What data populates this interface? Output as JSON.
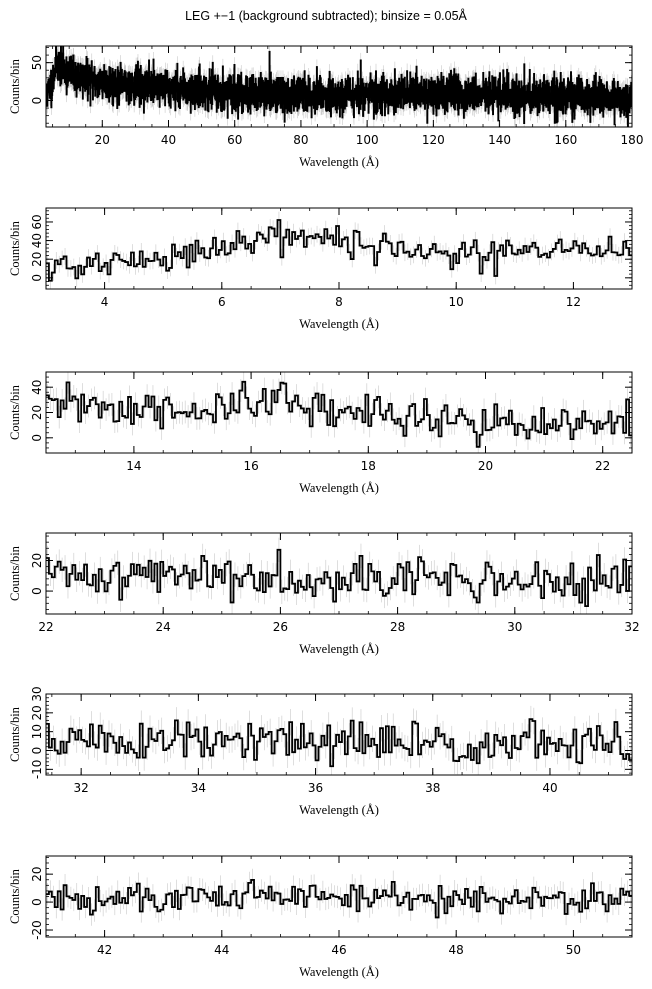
{
  "title": "LEG +−1 (background subtracted); binsize = 0.05Å",
  "colors": {
    "line": "#000000",
    "errorbar": "#c8c8c8",
    "frame": "#000000",
    "background": "#ffffff"
  },
  "chart_data": [
    {
      "type": "line",
      "step": true,
      "xlabel": "Wavelength (Å)",
      "ylabel": "Counts/bin",
      "xlim": [
        3,
        180
      ],
      "ylim": [
        -35,
        72
      ],
      "xticks": [
        20,
        40,
        60,
        80,
        100,
        120,
        140,
        160,
        180
      ],
      "yticks": [
        0,
        50
      ],
      "binsize": 0.05,
      "profile": [
        [
          3,
          5
        ],
        [
          5,
          25
        ],
        [
          6,
          50
        ],
        [
          7,
          45
        ],
        [
          10,
          35
        ],
        [
          15,
          28
        ],
        [
          25,
          22
        ],
        [
          40,
          18
        ],
        [
          60,
          10
        ],
        [
          80,
          8
        ],
        [
          100,
          8
        ],
        [
          120,
          9
        ],
        [
          140,
          8
        ],
        [
          160,
          6
        ],
        [
          170,
          3
        ],
        [
          175,
          1
        ],
        [
          180,
          0
        ]
      ],
      "scatter_sd": 12,
      "error_bar": 10,
      "noise_seed": 11
    },
    {
      "type": "line",
      "step": true,
      "xlabel": "Wavelength (Å)",
      "ylabel": "Counts/bin",
      "xlim": [
        3,
        13
      ],
      "ylim": [
        -12,
        75
      ],
      "xticks": [
        4,
        6,
        8,
        10,
        12
      ],
      "yticks": [
        0,
        20,
        40,
        60
      ],
      "binsize": 0.05,
      "profile": [
        [
          3,
          10
        ],
        [
          4,
          15
        ],
        [
          5,
          20
        ],
        [
          5.5,
          25
        ],
        [
          6,
          32
        ],
        [
          6.5,
          47
        ],
        [
          7,
          47
        ],
        [
          7.5,
          42
        ],
        [
          8,
          38
        ],
        [
          9,
          33
        ],
        [
          9.5,
          25
        ],
        [
          10,
          30
        ],
        [
          11,
          25
        ],
        [
          12,
          28
        ],
        [
          13,
          35
        ]
      ],
      "scatter_sd": 8,
      "error_bar": 9,
      "noise_seed": 21
    },
    {
      "type": "line",
      "step": true,
      "xlabel": "Wavelength (Å)",
      "ylabel": "Counts/bin",
      "xlim": [
        12.5,
        22.5
      ],
      "ylim": [
        -12,
        52
      ],
      "xticks": [
        14,
        16,
        18,
        20,
        22
      ],
      "yticks": [
        0,
        20,
        40
      ],
      "binsize": 0.05,
      "profile": [
        [
          12.5,
          22
        ],
        [
          13,
          28
        ],
        [
          14,
          20
        ],
        [
          15,
          22
        ],
        [
          16,
          25
        ],
        [
          16.5,
          30
        ],
        [
          17,
          22
        ],
        [
          18,
          20
        ],
        [
          19,
          18
        ],
        [
          19.5,
          15
        ],
        [
          20,
          12
        ],
        [
          21,
          8
        ],
        [
          22,
          10
        ],
        [
          22.5,
          8
        ]
      ],
      "scatter_sd": 8,
      "error_bar": 9,
      "noise_seed": 31
    },
    {
      "type": "line",
      "step": true,
      "xlabel": "Wavelength (Å)",
      "ylabel": "Counts/bin",
      "xlim": [
        22,
        32
      ],
      "ylim": [
        -15,
        38
      ],
      "xticks": [
        22,
        24,
        26,
        28,
        30,
        32
      ],
      "yticks": [
        0,
        20
      ],
      "binsize": 0.05,
      "profile": [
        [
          22,
          10
        ],
        [
          24,
          11
        ],
        [
          26,
          10
        ],
        [
          28,
          9
        ],
        [
          30,
          6
        ],
        [
          32,
          5
        ]
      ],
      "scatter_sd": 7,
      "error_bar": 8,
      "noise_seed": 41
    },
    {
      "type": "line",
      "step": true,
      "xlabel": "Wavelength (Å)",
      "ylabel": "Counts/bin",
      "xlim": [
        31.4,
        41.4
      ],
      "ylim": [
        -13,
        30
      ],
      "xticks": [
        32,
        34,
        36,
        38,
        40
      ],
      "yticks": [
        -10,
        0,
        10,
        20,
        30
      ],
      "binsize": 0.05,
      "profile": [
        [
          31.4,
          6
        ],
        [
          33,
          5
        ],
        [
          35,
          4
        ],
        [
          37,
          4
        ],
        [
          39,
          4
        ],
        [
          41.4,
          3
        ]
      ],
      "scatter_sd": 6,
      "error_bar": 7,
      "noise_seed": 51
    },
    {
      "type": "line",
      "step": true,
      "xlabel": "Wavelength (Å)",
      "ylabel": "Counts/bin",
      "xlim": [
        41,
        51
      ],
      "ylim": [
        -25,
        33
      ],
      "xticks": [
        42,
        44,
        46,
        48,
        50
      ],
      "yticks": [
        -20,
        0,
        20
      ],
      "binsize": 0.05,
      "profile": [
        [
          41,
          2
        ],
        [
          43,
          2
        ],
        [
          44,
          5
        ],
        [
          46,
          4
        ],
        [
          48,
          3
        ],
        [
          51,
          2
        ]
      ],
      "scatter_sd": 6,
      "error_bar": 8,
      "noise_seed": 61
    }
  ]
}
